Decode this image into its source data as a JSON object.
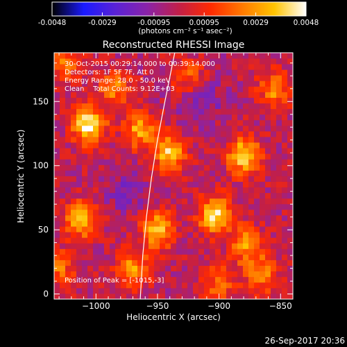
{
  "colorbar": {
    "tick_labels": [
      "-0.0048",
      "-0.0029",
      "-0.00095",
      "0.00095",
      "0.0029",
      "0.0048"
    ],
    "unit_label": "(photons cm⁻² s⁻¹ asec⁻²)",
    "range": [
      -0.0048,
      0.0048
    ],
    "colormap": [
      "#000000",
      "#1a1aff",
      "#5a22d6",
      "#8a23a8",
      "#c21f48",
      "#ff2a00",
      "#ff7a00",
      "#ffc400",
      "#ffffff"
    ]
  },
  "chart_data": {
    "type": "heatmap",
    "title": "Reconstructed RHESSI Image",
    "xlabel": "Heliocentric X (arcsec)",
    "ylabel": "Heliocentric Y (arcsec)",
    "xlim": [
      -1034,
      -840
    ],
    "ylim": [
      -4,
      188
    ],
    "x_ticks": [
      -1000,
      -950,
      -900,
      -850
    ],
    "y_ticks": [
      0,
      50,
      100,
      150
    ],
    "x_tick_labels": [
      "−1000",
      "−950",
      "−900",
      "−850"
    ],
    "y_tick_labels": [
      "0",
      "50",
      "100",
      "150"
    ],
    "annotations": [
      "30-Oct-2015 00:29:14.000 to 00:39:14.000",
      "Detectors: 1F 5F 7F, Att 0",
      "Energy Range: 28.0 - 50.0 keV",
      "Clean    Total Counts: 9.12E+03"
    ],
    "peak_label": "Position of Peak = [-1015,-3]",
    "peak": [
      -1015,
      -3
    ],
    "limb_curve": [
      [
        -964,
        -4
      ],
      [
        -962,
        30
      ],
      [
        -959,
        60
      ],
      [
        -955,
        90
      ],
      [
        -950,
        120
      ],
      [
        -944,
        150
      ],
      [
        -936,
        188
      ]
    ],
    "sources": [
      {
        "x": -1006,
        "y": 132,
        "amp": 0.0048
      },
      {
        "x": -1012,
        "y": 58,
        "amp": 0.0036
      },
      {
        "x": -965,
        "y": 128,
        "amp": 0.0032
      },
      {
        "x": -940,
        "y": 110,
        "amp": 0.004
      },
      {
        "x": -880,
        "y": 108,
        "amp": 0.0044
      },
      {
        "x": -950,
        "y": 50,
        "amp": 0.0038
      },
      {
        "x": -903,
        "y": 62,
        "amp": 0.0046
      },
      {
        "x": -970,
        "y": 20,
        "amp": 0.003
      },
      {
        "x": -985,
        "y": 160,
        "amp": 0.0026
      },
      {
        "x": -878,
        "y": 38,
        "amp": 0.003
      },
      {
        "x": -855,
        "y": 160,
        "amp": 0.0028
      },
      {
        "x": -900,
        "y": 8,
        "amp": 0.0024
      },
      {
        "x": -865,
        "y": 15,
        "amp": 0.0026
      },
      {
        "x": -1025,
        "y": 180,
        "amp": 0.0024
      },
      {
        "x": -925,
        "y": 170,
        "amp": 0.0022
      },
      {
        "x": -1030,
        "y": 20,
        "amp": 0.0022
      }
    ]
  },
  "footer": {
    "timestamp": "26-Sep-2017 20:36"
  }
}
